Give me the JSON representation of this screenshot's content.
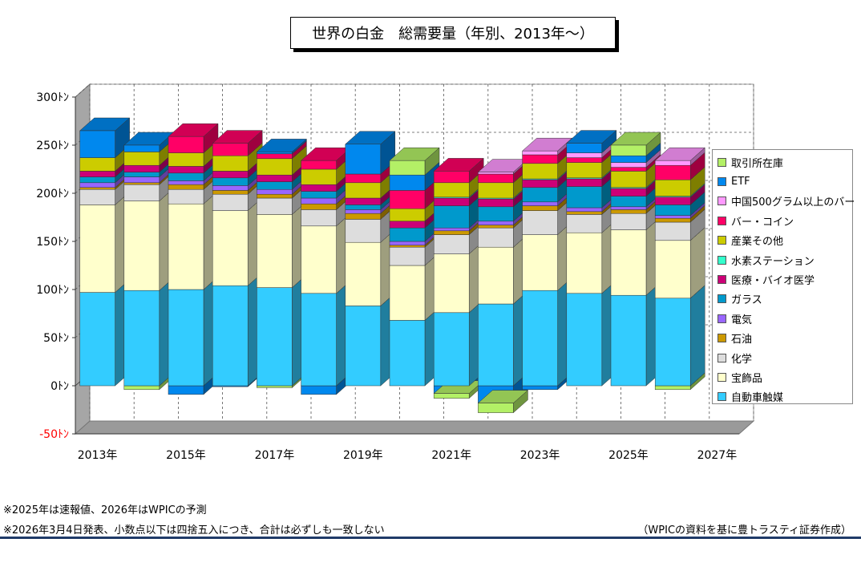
{
  "chart_data": {
    "type": "bar",
    "stacked": true,
    "title": "世界の白金　総需要量（年別、2013年〜）",
    "unit_suffix": "ﾄﾝ",
    "ylim": [
      -50,
      300
    ],
    "yticks": [
      {
        "value": 300,
        "label": "300ﾄﾝ"
      },
      {
        "value": 250,
        "label": "250ﾄﾝ"
      },
      {
        "value": 200,
        "label": "200ﾄﾝ"
      },
      {
        "value": 150,
        "label": "150ﾄﾝ"
      },
      {
        "value": 100,
        "label": "100ﾄﾝ"
      },
      {
        "value": 50,
        "label": "50ﾄﾝ"
      },
      {
        "value": 0,
        "label": "0ﾄﾝ"
      },
      {
        "value": -50,
        "label": "-50ﾄﾝ"
      }
    ],
    "categories": [
      "2013年",
      "2014年",
      "2015年",
      "2016年",
      "2017年",
      "2018年",
      "2019年",
      "2020年",
      "2021年",
      "2022年",
      "2023年",
      "2024年",
      "2025年",
      "2026年"
    ],
    "xtick_labels": [
      "2013年",
      "2015年",
      "2017年",
      "2019年",
      "2021年",
      "2023年",
      "2025年",
      "2027年"
    ],
    "legend_position": "right",
    "series": [
      {
        "name": "自動車触媒",
        "color": "#33ccff",
        "values": [
          97,
          99,
          100,
          104,
          102,
          96,
          83,
          68,
          76,
          85,
          99,
          96,
          94,
          91
        ]
      },
      {
        "name": "宝飾品",
        "color": "#ffffcc",
        "values": [
          91,
          93,
          89,
          78,
          76,
          70,
          66,
          57,
          61,
          59,
          58,
          63,
          68,
          60
        ]
      },
      {
        "name": "化学",
        "color": "#dddddd",
        "values": [
          16,
          17,
          15,
          17,
          17,
          17,
          24,
          19,
          20,
          20,
          25,
          19,
          17,
          19
        ]
      },
      {
        "name": "石油",
        "color": "#cc9900",
        "values": [
          2,
          2,
          5,
          4,
          4,
          6,
          6,
          2,
          4,
          3,
          5,
          3,
          4,
          4
        ]
      },
      {
        "name": "電気",
        "color": "#9966ff",
        "values": [
          5,
          6,
          4,
          5,
          5,
          6,
          4,
          4,
          3,
          4,
          4,
          4,
          3,
          3
        ]
      },
      {
        "name": "ガラス",
        "color": "#0099cc",
        "values": [
          6,
          5,
          8,
          8,
          8,
          7,
          5,
          14,
          23,
          15,
          15,
          22,
          11,
          11
        ]
      },
      {
        "name": "医療・バイオ医学",
        "color": "#cc0077",
        "values": [
          6,
          7,
          7,
          7,
          7,
          7,
          7,
          7,
          8,
          8,
          8,
          8,
          8,
          8
        ]
      },
      {
        "name": "水素ステーション",
        "color": "#33ffcc",
        "values": [
          0,
          0,
          0,
          0,
          0,
          0,
          0,
          0,
          1,
          1,
          1,
          1,
          1,
          1
        ]
      },
      {
        "name": "産業その他",
        "color": "#cccc00",
        "values": [
          14,
          14,
          14,
          16,
          17,
          16,
          16,
          13,
          15,
          16,
          16,
          16,
          17,
          17
        ]
      },
      {
        "name": "バー・コイン",
        "color": "#ff0066",
        "values": [
          0,
          0,
          17,
          13,
          5,
          9,
          9,
          19,
          12,
          9,
          9,
          5,
          4,
          15
        ]
      },
      {
        "name": "中国500グラム以上のバー",
        "color": "#ff99ff",
        "values": [
          0,
          0,
          0,
          0,
          0,
          0,
          0,
          0,
          0,
          2,
          4,
          5,
          5,
          5
        ]
      },
      {
        "name": "ETF",
        "color": "#0088ee",
        "values": [
          28,
          7,
          -9,
          -1,
          2,
          -9,
          31,
          16,
          -8,
          -18,
          -4,
          10,
          7,
          0
        ]
      },
      {
        "name": "取引所在庫",
        "color": "#b3f066",
        "values": [
          0,
          -4,
          0,
          0,
          -2,
          0,
          0,
          15,
          -5,
          -10,
          0,
          0,
          11,
          -4
        ]
      }
    ]
  },
  "notes": {
    "line1": "※2025年は速報値、2026年はWPICの予測",
    "line2": "※2026年3月4日発表、小数点以下は四捨五入につき、合計は必ずしも一致しない",
    "source": "（WPICの資料を基に豊トラスティ証券作成）"
  }
}
